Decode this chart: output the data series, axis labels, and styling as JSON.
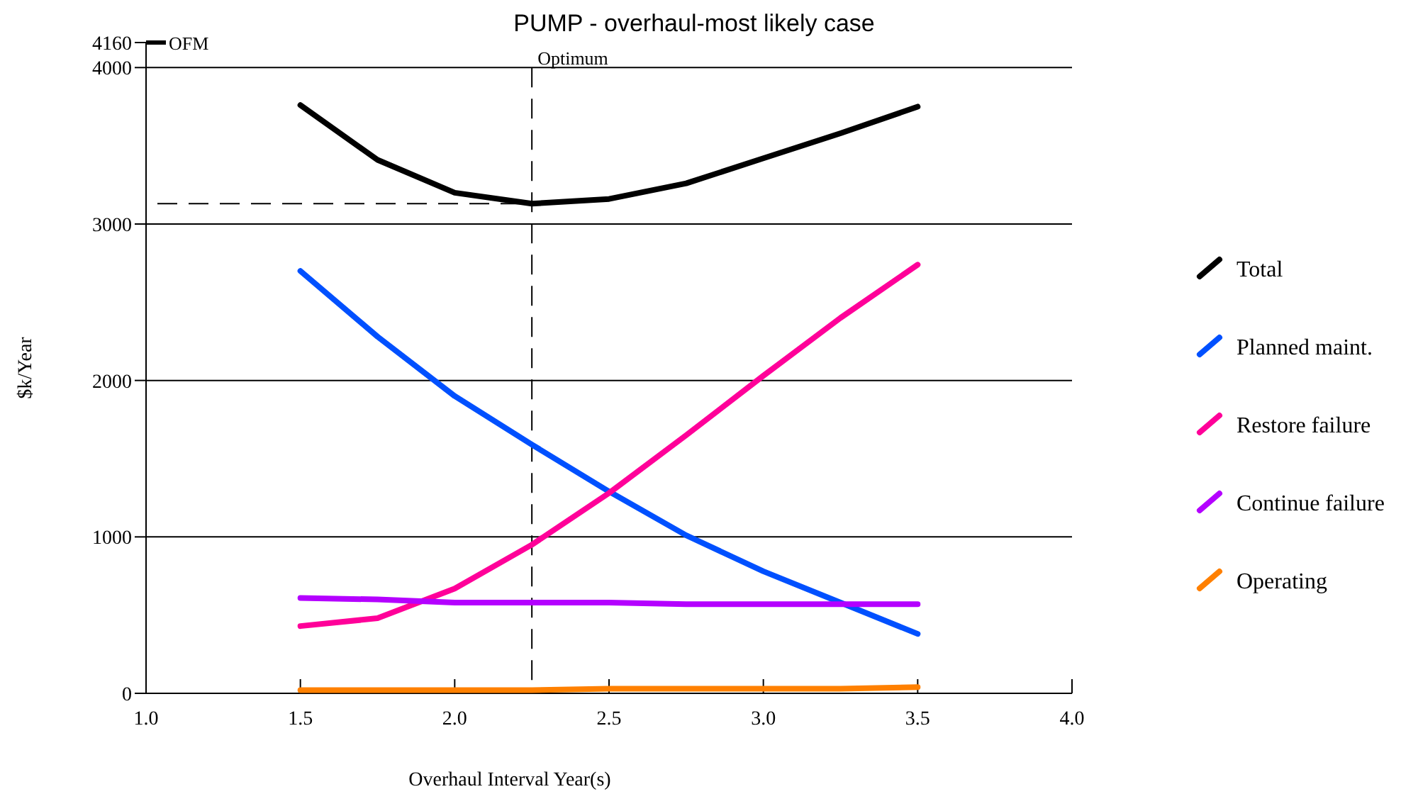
{
  "chart_data": {
    "type": "line",
    "title": "PUMP - overhaul-most likely case",
    "xlabel": "Overhaul Interval Year(s)",
    "ylabel": "$k/Year",
    "x": [
      1.5,
      1.75,
      2.0,
      2.25,
      2.5,
      2.75,
      3.0,
      3.25,
      3.5
    ],
    "series": [
      {
        "name": "Total",
        "color": "#000000",
        "values": [
          3760,
          3410,
          3200,
          3130,
          3160,
          3260,
          3420,
          3580,
          3750
        ]
      },
      {
        "name": "Planned maint.",
        "color": "#0050ff",
        "values": [
          2700,
          2280,
          1900,
          1590,
          1290,
          1010,
          780,
          580,
          380
        ]
      },
      {
        "name": "Restore failure",
        "color": "#ff0099",
        "values": [
          430,
          480,
          670,
          950,
          1280,
          1650,
          2030,
          2400,
          2740
        ]
      },
      {
        "name": "Continue failure",
        "color": "#b400ff",
        "values": [
          610,
          600,
          580,
          580,
          580,
          570,
          570,
          570,
          570
        ]
      },
      {
        "name": "Operating",
        "color": "#ff8000",
        "values": [
          20,
          20,
          20,
          20,
          30,
          30,
          30,
          30,
          40
        ]
      }
    ],
    "xlim": [
      1.0,
      4.0
    ],
    "xticks": [
      {
        "value": 1,
        "label": "1.0"
      },
      {
        "value": 1.5,
        "label": "1.5"
      },
      {
        "value": 2,
        "label": "2.0"
      },
      {
        "value": 2.5,
        "label": "2.5"
      },
      {
        "value": 3,
        "label": "3.0"
      },
      {
        "value": 3.5,
        "label": "3.5"
      },
      {
        "value": 4,
        "label": "4.0"
      }
    ],
    "ylim": [
      0,
      4160
    ],
    "yticks": [
      0,
      1000,
      2000,
      3000,
      4000,
      4160
    ],
    "ref_lines": [
      {
        "axis": "x",
        "value": 2.25,
        "label": "Optimum",
        "line_style": "dashed"
      },
      {
        "axis": "y",
        "value": 3130,
        "line_style": "dashed"
      }
    ],
    "annotations": [
      "OFM"
    ],
    "grid": "y",
    "legend": "right",
    "line_style": "solid"
  }
}
